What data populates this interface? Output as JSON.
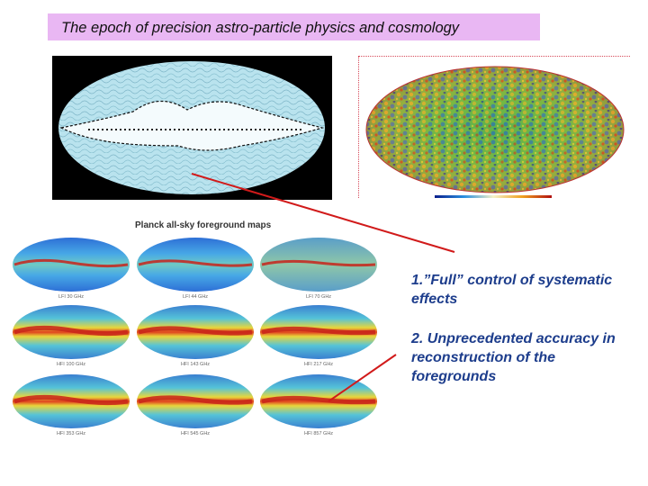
{
  "title": "The epoch of precision  astro-particle physics and cosmology",
  "foreground_heading": "Planck all-sky foreground maps",
  "maps": [
    {
      "label": "LFI 30 GHz"
    },
    {
      "label": "LFI 44 GHz"
    },
    {
      "label": "LFI 70 GHz"
    },
    {
      "label": "HFI 100 GHz"
    },
    {
      "label": "HFI 143 GHz"
    },
    {
      "label": "HFI 217 GHz"
    },
    {
      "label": "HFI 353 GHz"
    },
    {
      "label": "HFI 545 GHz"
    },
    {
      "label": "HFI 857 GHz"
    }
  ],
  "notes": {
    "point1": "1.”Full” control of systematic effects",
    "point2": "2. Unprecedented accuracy in reconstruction of the foregrounds"
  },
  "colors": {
    "title_bg": "#e9b7f3",
    "note_text": "#1d3d8c",
    "arrow": "#d11a1a"
  }
}
